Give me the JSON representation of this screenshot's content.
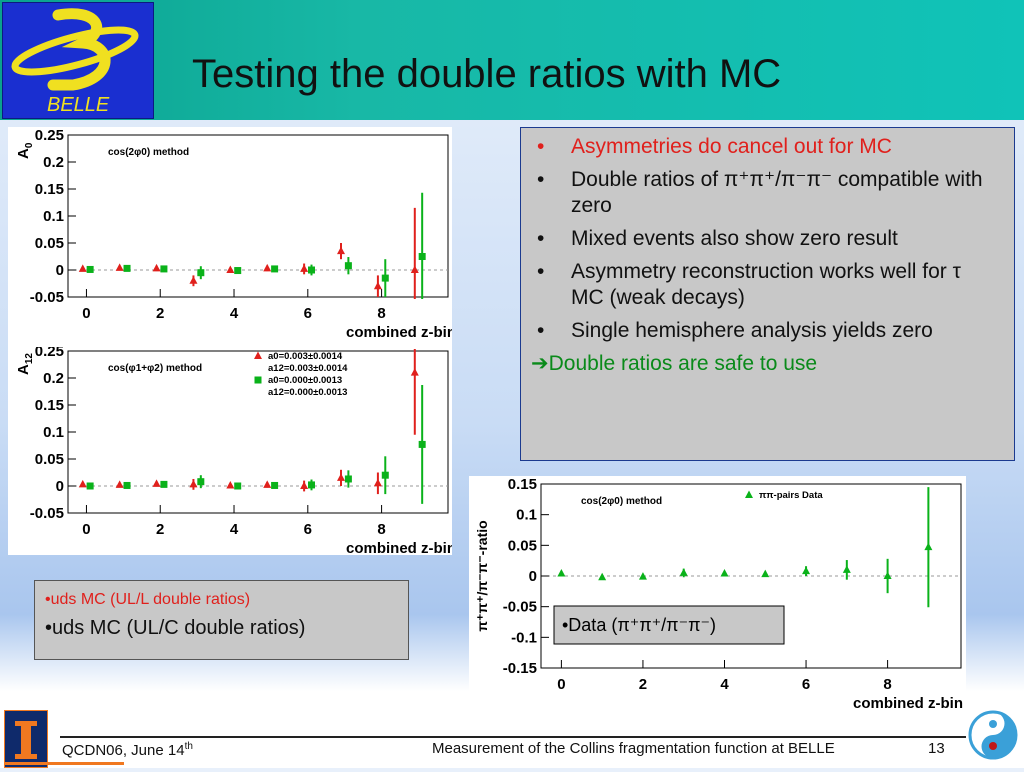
{
  "slide": {
    "title": "Testing the double ratios with MC",
    "logo_text": "BELLE",
    "bullets": [
      {
        "text": "Asymmetries do cancel out for MC",
        "color": "#e0201c"
      },
      {
        "text": "Double ratios of π⁺π⁺/π⁻π⁻  compatible with zero",
        "color": "#111111"
      },
      {
        "text": "Mixed events also show zero result",
        "color": "#111111"
      },
      {
        "text": "Asymmetry reconstruction works well for τ MC (weak decays)",
        "color": "#111111"
      },
      {
        "text": "Single hemisphere analysis yields zero",
        "color": "#111111"
      }
    ],
    "bullet_symbol": "•",
    "conclusion_arrow": "➔",
    "conclusion": "Double ratios are safe to use",
    "legend_box": {
      "line1": "•uds MC (UL/L double ratios)",
      "line2": "•uds MC  (UL/C double ratios)"
    },
    "footer": {
      "left": "QCDN06, June 14",
      "left_sup": "th",
      "center": "Measurement of the Collins fragmentation function at BELLE",
      "page": "13"
    },
    "colors": {
      "red": "#e0201c",
      "green": "#0ab21a",
      "header": "#0aa28f"
    }
  },
  "chart_data": [
    {
      "type": "scatter",
      "panel": "top-left",
      "ylabel": "A",
      "ylabel_sub": "0",
      "xlabel": "combined z-bin",
      "annotation": "cos(2φ0) method",
      "xlim": [
        -0.5,
        9.8
      ],
      "ylim": [
        -0.05,
        0.25
      ],
      "xticks": [
        "0",
        "2",
        "4",
        "6",
        "8"
      ],
      "xtick_values": [
        0,
        2,
        4,
        6,
        8
      ],
      "yticks": [
        "-0.05",
        "0",
        "0.05",
        "0.1",
        "0.15",
        "0.2",
        "0.25"
      ],
      "ytick_values": [
        -0.05,
        0,
        0.05,
        0.1,
        0.15,
        0.2,
        0.25
      ],
      "series": [
        {
          "color": "#e0201c",
          "marker": "triangle",
          "x": [
            -0.1,
            0.9,
            1.9,
            2.9,
            3.9,
            4.9,
            5.9,
            6.9,
            7.9,
            8.9
          ],
          "y": [
            0.002,
            0.004,
            0.003,
            -0.02,
            0.0,
            0.003,
            0.002,
            0.035,
            -0.03,
            0.0
          ],
          "err": [
            0.004,
            0.004,
            0.005,
            0.01,
            0.004,
            0.005,
            0.01,
            0.015,
            0.02,
            0.115
          ]
        },
        {
          "color": "#0ab21a",
          "marker": "square",
          "x": [
            0.1,
            1.1,
            2.1,
            3.1,
            4.1,
            5.1,
            6.1,
            7.1,
            8.1,
            9.1
          ],
          "y": [
            0.001,
            0.003,
            0.002,
            -0.005,
            -0.001,
            0.002,
            0.0,
            0.008,
            -0.015,
            0.025
          ],
          "err": [
            0.004,
            0.004,
            0.005,
            0.012,
            0.004,
            0.005,
            0.01,
            0.016,
            0.035,
            0.118
          ]
        }
      ]
    },
    {
      "type": "scatter",
      "panel": "bottom-left",
      "ylabel": "A",
      "ylabel_sub": "12",
      "xlabel": "combined z-bin",
      "annotation": "cos(φ1+φ2) method",
      "legend": [
        {
          "text": "a0=0.003±0.0014",
          "color": "#e0201c",
          "marker": "triangle"
        },
        {
          "text": "a12=0.003±0.0014",
          "color": "",
          "marker": ""
        },
        {
          "text": "a0=0.000±0.0013",
          "color": "#0ab21a",
          "marker": "square"
        },
        {
          "text": "a12=0.000±0.0013",
          "color": "",
          "marker": ""
        }
      ],
      "xlim": [
        -0.5,
        9.8
      ],
      "ylim": [
        -0.05,
        0.25
      ],
      "xticks": [
        "0",
        "2",
        "4",
        "6",
        "8"
      ],
      "xtick_values": [
        0,
        2,
        4,
        6,
        8
      ],
      "yticks": [
        "-0.05",
        "0",
        "0.05",
        "0.1",
        "0.15",
        "0.2",
        "0.25"
      ],
      "ytick_values": [
        -0.05,
        0,
        0.05,
        0.1,
        0.15,
        0.2,
        0.25
      ],
      "series": [
        {
          "color": "#e0201c",
          "marker": "triangle",
          "x": [
            -0.1,
            0.9,
            1.9,
            2.9,
            3.9,
            4.9,
            5.9,
            6.9,
            7.9,
            8.9
          ],
          "y": [
            0.003,
            0.002,
            0.004,
            0.003,
            0.001,
            0.002,
            0.0,
            0.015,
            0.005,
            0.21
          ],
          "err": [
            0.004,
            0.004,
            0.005,
            0.01,
            0.004,
            0.005,
            0.01,
            0.015,
            0.02,
            0.115
          ]
        },
        {
          "color": "#0ab21a",
          "marker": "square",
          "x": [
            0.1,
            1.1,
            2.1,
            3.1,
            4.1,
            5.1,
            6.1,
            7.1,
            8.1,
            9.1
          ],
          "y": [
            0.0,
            0.001,
            0.003,
            0.008,
            0.0,
            0.001,
            0.002,
            0.013,
            0.02,
            0.077
          ],
          "err": [
            0.004,
            0.004,
            0.005,
            0.012,
            0.004,
            0.005,
            0.01,
            0.016,
            0.035,
            0.11
          ]
        }
      ]
    },
    {
      "type": "scatter",
      "panel": "data",
      "ylabel": "π⁺π⁺/π⁻π⁻-ratio",
      "xlabel": "combined z-bin",
      "annotation": "cos(2φ0) method",
      "legend": [
        {
          "text": "ππ-pairs Data",
          "color": "#0ab21a",
          "marker": "triangle"
        }
      ],
      "inset_label": "•Data     (π⁺π⁺/π⁻π⁻)",
      "xlim": [
        -0.5,
        9.8
      ],
      "ylim": [
        -0.15,
        0.15
      ],
      "xticks": [
        "0",
        "2",
        "4",
        "6",
        "8"
      ],
      "xtick_values": [
        0,
        2,
        4,
        6,
        8
      ],
      "yticks": [
        "-0.15",
        "-0.1",
        "-0.05",
        "0",
        "0.05",
        "0.1",
        "0.15"
      ],
      "ytick_values": [
        -0.15,
        -0.1,
        -0.05,
        0,
        0.05,
        0.1,
        0.15
      ],
      "series": [
        {
          "color": "#0ab21a",
          "marker": "triangle",
          "x": [
            0,
            1,
            2,
            3,
            4,
            5,
            6,
            7,
            8,
            9
          ],
          "y": [
            0.004,
            -0.002,
            -0.001,
            0.005,
            0.004,
            0.003,
            0.008,
            0.01,
            0.0,
            0.047
          ],
          "err": [
            0.003,
            0.003,
            0.004,
            0.007,
            0.004,
            0.004,
            0.008,
            0.016,
            0.028,
            0.098
          ]
        }
      ]
    }
  ]
}
